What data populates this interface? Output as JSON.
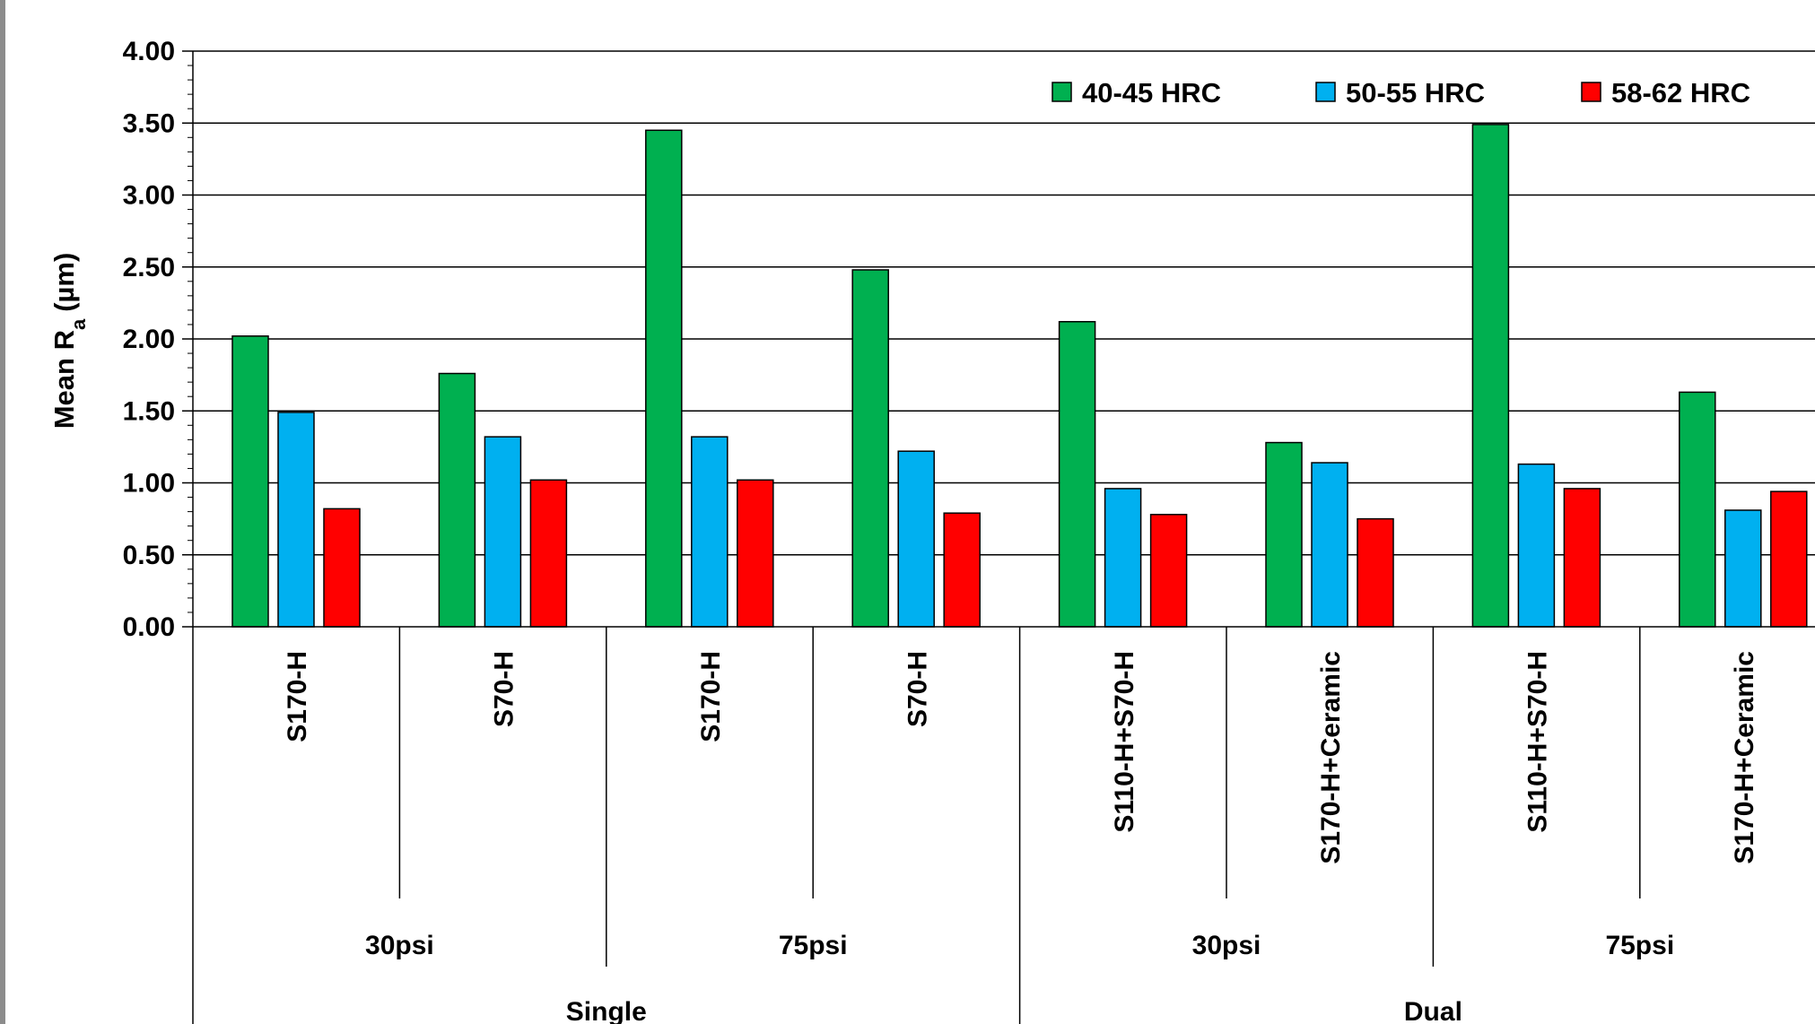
{
  "chart_data": {
    "type": "bar",
    "title": "",
    "ylabel": "Mean R",
    "ylabel_subscript": "a",
    "ylabel_unit": "(µm)",
    "ylim": [
      0,
      4
    ],
    "yticks": [
      "0.00",
      "0.50",
      "1.00",
      "1.50",
      "2.00",
      "2.50",
      "3.00",
      "3.50",
      "4.00"
    ],
    "grid": true,
    "legend_position": "top-right",
    "categories": [
      "S170-H",
      "S70-H",
      "S170-H",
      "S70-H",
      "S110-H+S70-H",
      "S170-H+Ceramic",
      "S110-H+S70-H",
      "S170-H+Ceramic"
    ],
    "pressure_groups": [
      "30psi",
      "75psi",
      "30psi",
      "75psi"
    ],
    "shot_groups": [
      "Single",
      "Dual"
    ],
    "series": [
      {
        "name": "40-45 HRC",
        "color": "#00b050",
        "values": [
          2.02,
          1.76,
          3.45,
          2.48,
          2.12,
          1.28,
          3.49,
          1.63
        ]
      },
      {
        "name": "50-55 HRC",
        "color": "#00b0f0",
        "values": [
          1.49,
          1.32,
          1.32,
          1.22,
          0.96,
          1.14,
          1.13,
          0.81
        ]
      },
      {
        "name": "58-62 HRC",
        "color": "#ff0000",
        "values": [
          0.82,
          1.02,
          1.02,
          0.79,
          0.78,
          0.75,
          0.96,
          0.94
        ]
      }
    ]
  }
}
